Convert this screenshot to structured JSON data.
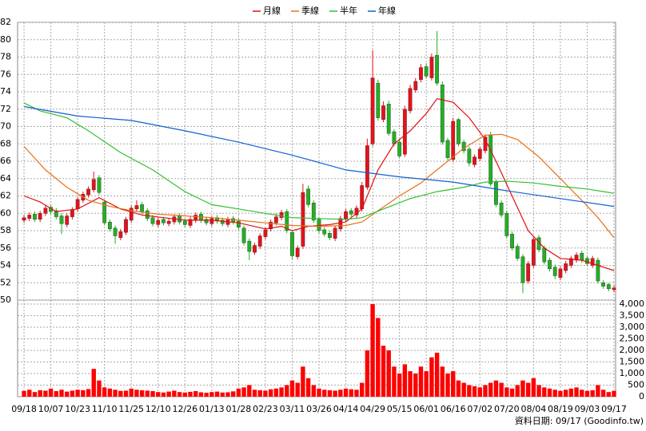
{
  "chart_data": {
    "type": "candlestick",
    "footer": "資料日期: 09/17 (Goodinfo.tw)",
    "xlim": [
      -1.2,
      110.3
    ],
    "xticks": [
      {
        "value": 0,
        "label": "09/18"
      },
      {
        "value": 5,
        "label": "10/07"
      },
      {
        "value": 10,
        "label": "10/23"
      },
      {
        "value": 15,
        "label": "11/10"
      },
      {
        "value": 20,
        "label": "11/25"
      },
      {
        "value": 25,
        "label": "12/10"
      },
      {
        "value": 30,
        "label": "12/26"
      },
      {
        "value": 35,
        "label": "01/13"
      },
      {
        "value": 40,
        "label": "01/28"
      },
      {
        "value": 45,
        "label": "02/23"
      },
      {
        "value": 50,
        "label": "03/11"
      },
      {
        "value": 55,
        "label": "03/26"
      },
      {
        "value": 60,
        "label": "04/14"
      },
      {
        "value": 65,
        "label": "04/29"
      },
      {
        "value": 70,
        "label": "05/15"
      },
      {
        "value": 75,
        "label": "06/01"
      },
      {
        "value": 80,
        "label": "06/16"
      },
      {
        "value": 85,
        "label": "07/02"
      },
      {
        "value": 90,
        "label": "07/20"
      },
      {
        "value": 95,
        "label": "08/04"
      },
      {
        "value": 100,
        "label": "08/19"
      },
      {
        "value": 105,
        "label": "09/03"
      },
      {
        "value": 110,
        "label": "09/17"
      }
    ],
    "ylim": [
      50,
      82
    ],
    "yticks": [
      50,
      52,
      54,
      56,
      58,
      60,
      62,
      64,
      66,
      68,
      70,
      72,
      74,
      76,
      78,
      80,
      82
    ],
    "y2lim": [
      0,
      4000
    ],
    "y2ticks": [
      0,
      500,
      {
        "value": 1000,
        "label": "1,000"
      },
      {
        "value": 1500,
        "label": "1,500"
      },
      {
        "value": 2000,
        "label": "2,000"
      },
      {
        "value": 2500,
        "label": "2,500"
      },
      {
        "value": 3000,
        "label": "3,000"
      },
      {
        "value": 3500,
        "label": "3,500"
      },
      {
        "value": 4000,
        "label": "4,000"
      }
    ],
    "grid": true,
    "up_color": "#e8101a",
    "down_color": "#22b022",
    "candles": {
      "open": [
        59.2,
        59.4,
        59.9,
        59.3,
        60.0,
        60.7,
        60.3,
        59.7,
        58.7,
        59.6,
        60.5,
        61.5,
        62.1,
        62.7,
        64.1,
        61.3,
        59.0,
        58.3,
        57.2,
        57.8,
        59.2,
        60.5,
        61.0,
        60.3,
        59.5,
        58.7,
        59.3,
        58.8,
        59.0,
        59.7,
        59.1,
        58.6,
        59.2,
        59.9,
        59.3,
        58.8,
        59.5,
        59.2,
        58.7,
        59.4,
        59.1,
        58.3,
        56.8,
        55.5,
        56.2,
        57.3,
        58.2,
        58.9,
        59.5,
        60.2,
        57.8,
        55.0,
        56.2,
        62.8,
        61.2,
        59.3,
        58.1,
        57.7,
        57.1,
        58.2,
        59.3,
        60.3,
        59.8,
        60.5,
        63.0,
        68.0,
        75.0,
        70.8,
        72.6,
        69.4,
        68.2,
        66.8,
        71.8,
        74.2,
        75.4,
        76.9,
        75.6,
        78.2,
        74.8,
        68.4,
        66.2,
        70.8,
        68.2,
        67.4,
        65.6,
        66.3,
        67.2,
        69.0,
        63.6,
        61.2,
        60.0,
        57.6,
        56.2,
        55.0,
        52.2,
        54.0,
        57.2,
        56.0,
        54.6,
        53.8,
        52.6,
        53.4,
        54.0,
        54.6,
        55.4,
        54.8,
        54.0,
        54.6,
        52.0,
        51.8,
        51.2
      ],
      "high": [
        59.8,
        60.1,
        60.2,
        60.3,
        60.9,
        61.0,
        60.6,
        60.0,
        60.0,
        60.7,
        61.9,
        62.5,
        63.1,
        64.8,
        64.4,
        61.5,
        59.3,
        58.6,
        58.2,
        59.6,
        60.9,
        61.5,
        61.3,
        60.6,
        59.8,
        59.5,
        59.6,
        59.4,
        59.9,
        60.0,
        59.4,
        59.6,
        60.1,
        60.2,
        59.6,
        59.7,
        59.8,
        59.5,
        59.6,
        59.7,
        59.4,
        58.6,
        57.1,
        56.6,
        57.7,
        58.4,
        59.3,
        60.0,
        60.4,
        60.5,
        58.1,
        56.3,
        63.4,
        63.2,
        61.5,
        59.6,
        58.4,
        58.0,
        58.6,
        59.7,
        60.5,
        60.6,
        60.9,
        63.6,
        68.6,
        78.8,
        75.4,
        72.9,
        73.0,
        69.7,
        68.5,
        72.4,
        74.8,
        75.6,
        77.2,
        77.3,
        78.4,
        81.0,
        75.2,
        68.7,
        71.0,
        71.0,
        68.5,
        67.7,
        66.8,
        67.7,
        69.1,
        69.4,
        63.9,
        61.5,
        60.3,
        57.9,
        56.5,
        55.3,
        54.5,
        57.3,
        57.5,
        56.3,
        54.9,
        54.1,
        53.9,
        54.5,
        55.1,
        55.5,
        55.7,
        55.1,
        55.1,
        54.9,
        52.3,
        52.0,
        51.7
      ],
      "low": [
        58.9,
        59.1,
        59.0,
        59.0,
        59.7,
        59.9,
        59.3,
        57.6,
        58.4,
        59.3,
        60.2,
        61.2,
        61.8,
        62.4,
        62.1,
        58.6,
        57.9,
        56.5,
        56.9,
        57.5,
        58.9,
        60.2,
        59.9,
        59.1,
        58.5,
        58.4,
        58.6,
        58.5,
        58.7,
        58.7,
        58.4,
        58.3,
        58.9,
        58.9,
        58.6,
        58.5,
        58.8,
        58.5,
        58.4,
        58.7,
        58.1,
        56.3,
        54.6,
        55.2,
        55.9,
        57.0,
        57.9,
        58.6,
        59.2,
        57.7,
        54.7,
        54.7,
        55.9,
        60.7,
        58.9,
        57.7,
        57.3,
        56.9,
        56.8,
        57.9,
        59.0,
        59.6,
        59.5,
        60.2,
        62.7,
        67.7,
        70.7,
        70.5,
        68.9,
        67.7,
        66.3,
        66.5,
        71.5,
        73.9,
        75.1,
        75.5,
        75.3,
        74.7,
        67.9,
        66.1,
        65.9,
        67.7,
        66.9,
        65.4,
        65.3,
        66.0,
        66.9,
        63.1,
        60.7,
        59.5,
        57.1,
        55.7,
        54.5,
        50.8,
        51.9,
        53.7,
        55.5,
        54.1,
        53.3,
        52.4,
        52.3,
        53.1,
        53.7,
        54.3,
        54.3,
        53.9,
        53.7,
        51.9,
        51.3,
        51.0,
        50.9
      ],
      "close": [
        59.5,
        59.8,
        59.3,
        60.0,
        60.6,
        60.2,
        59.6,
        58.8,
        59.7,
        60.4,
        61.6,
        62.2,
        62.8,
        63.9,
        62.4,
        58.9,
        58.2,
        57.4,
        57.9,
        59.3,
        60.6,
        60.9,
        60.2,
        59.4,
        58.8,
        59.2,
        58.9,
        59.1,
        59.6,
        59.0,
        58.7,
        59.3,
        59.8,
        59.2,
        58.9,
        59.4,
        59.1,
        58.8,
        59.3,
        59.0,
        58.4,
        56.6,
        55.6,
        56.3,
        57.4,
        58.1,
        59.0,
        59.6,
        60.1,
        58.0,
        55.1,
        56.0,
        62.4,
        61.0,
        59.2,
        58.0,
        57.6,
        57.2,
        58.3,
        59.4,
        60.2,
        59.9,
        60.6,
        63.2,
        67.8,
        75.6,
        71.0,
        72.4,
        69.2,
        68.0,
        66.6,
        72.0,
        74.4,
        75.2,
        76.8,
        75.8,
        78.0,
        75.0,
        68.2,
        66.4,
        70.6,
        68.0,
        67.2,
        65.8,
        66.5,
        67.4,
        68.8,
        63.4,
        61.0,
        59.8,
        57.4,
        56.0,
        54.8,
        52.0,
        54.2,
        57.0,
        55.8,
        54.4,
        53.6,
        52.8,
        53.6,
        54.2,
        54.8,
        55.2,
        54.6,
        54.2,
        54.8,
        52.2,
        51.6,
        51.3,
        51.4
      ]
    },
    "volume": {
      "color": "#ff0000",
      "axis": "y2",
      "values": [
        250,
        300,
        200,
        280,
        260,
        350,
        240,
        300,
        220,
        260,
        300,
        280,
        330,
        1200,
        700,
        400,
        350,
        300,
        250,
        260,
        350,
        300,
        280,
        260,
        240,
        200,
        180,
        220,
        260,
        200,
        180,
        210,
        240,
        190,
        170,
        200,
        220,
        180,
        190,
        230,
        350,
        400,
        500,
        300,
        280,
        260,
        320,
        350,
        400,
        500,
        700,
        600,
        1300,
        800,
        500,
        350,
        300,
        280,
        260,
        300,
        350,
        320,
        300,
        600,
        2000,
        4000,
        3400,
        2200,
        2000,
        1300,
        1000,
        1400,
        1100,
        1000,
        1300,
        1100,
        1700,
        1900,
        1300,
        1000,
        1100,
        700,
        600,
        500,
        450,
        400,
        500,
        600,
        700,
        600,
        400,
        350,
        500,
        700,
        600,
        800,
        500,
        400,
        350,
        300,
        250,
        300,
        350,
        400,
        300,
        250,
        280,
        500,
        300,
        200,
        250
      ]
    },
    "series": [
      {
        "name": "月線",
        "color": "#e01010",
        "x": [
          0,
          3,
          6,
          10,
          14,
          18,
          22,
          26,
          30,
          35,
          40,
          45,
          48,
          50,
          53,
          57,
          60,
          63,
          66,
          69,
          72,
          75,
          77,
          80,
          83,
          86,
          88,
          91,
          94,
          97,
          100,
          104,
          107,
          110
        ],
        "values": [
          62,
          61.3,
          60.2,
          60.5,
          61.8,
          60.5,
          59.8,
          59.5,
          59.2,
          59.2,
          58.9,
          58.2,
          58.5,
          58.0,
          58.5,
          58.7,
          59.0,
          60.5,
          65,
          68,
          69.5,
          71.5,
          73.2,
          72.8,
          71,
          68.5,
          66,
          62,
          58,
          56,
          54.8,
          54.6,
          54,
          53.4
        ]
      },
      {
        "name": "季線",
        "color": "#e8701a",
        "x": [
          0,
          4,
          8,
          12,
          16,
          20,
          25,
          30,
          35,
          40,
          45,
          50,
          55,
          60,
          63,
          66,
          70,
          74,
          78,
          82,
          86,
          89,
          92,
          96,
          100,
          104,
          107,
          110
        ],
        "values": [
          67.7,
          65,
          63,
          61.5,
          60.8,
          60.3,
          59.9,
          59.7,
          59.5,
          59.2,
          58.9,
          58.6,
          58.5,
          58.6,
          59.0,
          60.3,
          62,
          63.5,
          65.5,
          67.5,
          69,
          69.1,
          68.5,
          66.5,
          64,
          61.5,
          59.5,
          57.2
        ]
      },
      {
        "name": "半年",
        "color": "#30c030",
        "x": [
          0,
          3,
          8,
          12,
          18,
          24,
          30,
          35,
          40,
          45,
          50,
          55,
          60,
          63,
          67,
          72,
          77,
          82,
          86,
          90,
          95,
          100,
          105,
          110
        ],
        "values": [
          72.7,
          71.8,
          71,
          69.5,
          67,
          65,
          62.5,
          61,
          60.5,
          60,
          59.5,
          59.4,
          59.3,
          59.5,
          60.5,
          61.7,
          62.5,
          63,
          63.6,
          63.7,
          63.5,
          63.1,
          62.8,
          62.3
        ]
      },
      {
        "name": "年線",
        "color": "#1060d0",
        "x": [
          0,
          10,
          20,
          30,
          40,
          50,
          60,
          70,
          80,
          90,
          100,
          110
        ],
        "values": [
          72.3,
          71.2,
          70.7,
          69.5,
          68.2,
          66.7,
          65,
          64.2,
          63.6,
          62.6,
          61.7,
          60.8
        ]
      }
    ]
  }
}
